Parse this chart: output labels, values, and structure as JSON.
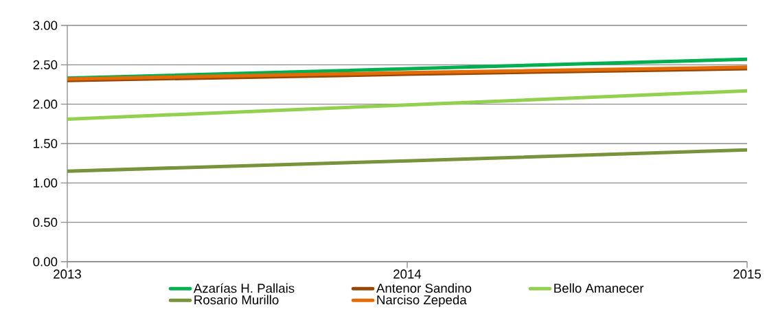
{
  "chart_data": {
    "type": "line",
    "x": [
      2013,
      2014,
      2015
    ],
    "series": [
      {
        "name": "Azarías H. Pallais",
        "color": "#00b050",
        "values": [
          2.33,
          2.45,
          2.57
        ]
      },
      {
        "name": "Antenor Sandino",
        "color": "#974706",
        "values": [
          2.3,
          2.38,
          2.45
        ]
      },
      {
        "name": "Bello Amanecer",
        "color": "#92d050",
        "values": [
          1.81,
          1.99,
          2.17
        ]
      },
      {
        "name": "Rosario Murillo",
        "color": "#77933c",
        "values": [
          1.15,
          1.28,
          1.42
        ]
      },
      {
        "name": "Narciso Zepeda",
        "color": "#e36c09",
        "values": [
          2.32,
          2.4,
          2.47
        ]
      }
    ],
    "xlim": [
      2013,
      2015
    ],
    "xticks": [
      2013,
      2014,
      2015
    ],
    "ylim": [
      0,
      3
    ],
    "yticks": [
      {
        "value": 0,
        "label": "0.00"
      },
      {
        "value": 0.5,
        "label": "0.50"
      },
      {
        "value": 1,
        "label": "1.00"
      },
      {
        "value": 1.5,
        "label": "1.50"
      },
      {
        "value": 2,
        "label": "2.00"
      },
      {
        "value": 2.5,
        "label": "2.50"
      },
      {
        "value": 3,
        "label": "3.00"
      }
    ],
    "grid": "y",
    "legend": "bottom",
    "line_style": "solid"
  }
}
